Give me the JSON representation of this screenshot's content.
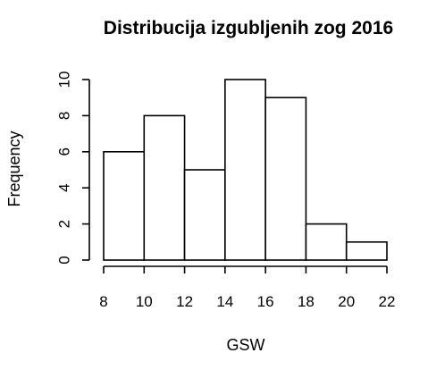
{
  "chart_data": {
    "type": "bar",
    "title": "Distribucija izgubljenih zog 2016",
    "xlabel": "GSW",
    "ylabel": "Frequency",
    "bins": [
      {
        "start": 8,
        "end": 10,
        "count": 6
      },
      {
        "start": 10,
        "end": 12,
        "count": 8
      },
      {
        "start": 12,
        "end": 14,
        "count": 5
      },
      {
        "start": 14,
        "end": 16,
        "count": 10
      },
      {
        "start": 16,
        "end": 18,
        "count": 9
      },
      {
        "start": 18,
        "end": 20,
        "count": 2
      },
      {
        "start": 20,
        "end": 22,
        "count": 1
      }
    ],
    "x_ticks": [
      "8",
      "10",
      "12",
      "14",
      "16",
      "18",
      "20",
      "22"
    ],
    "y_ticks": [
      "0",
      "2",
      "4",
      "6",
      "8",
      "10"
    ],
    "xlim": [
      8,
      22
    ],
    "ylim": [
      0,
      10
    ],
    "grid": false,
    "colors": {
      "bar_fill": "#ffffff",
      "bar_stroke": "#000000"
    }
  }
}
